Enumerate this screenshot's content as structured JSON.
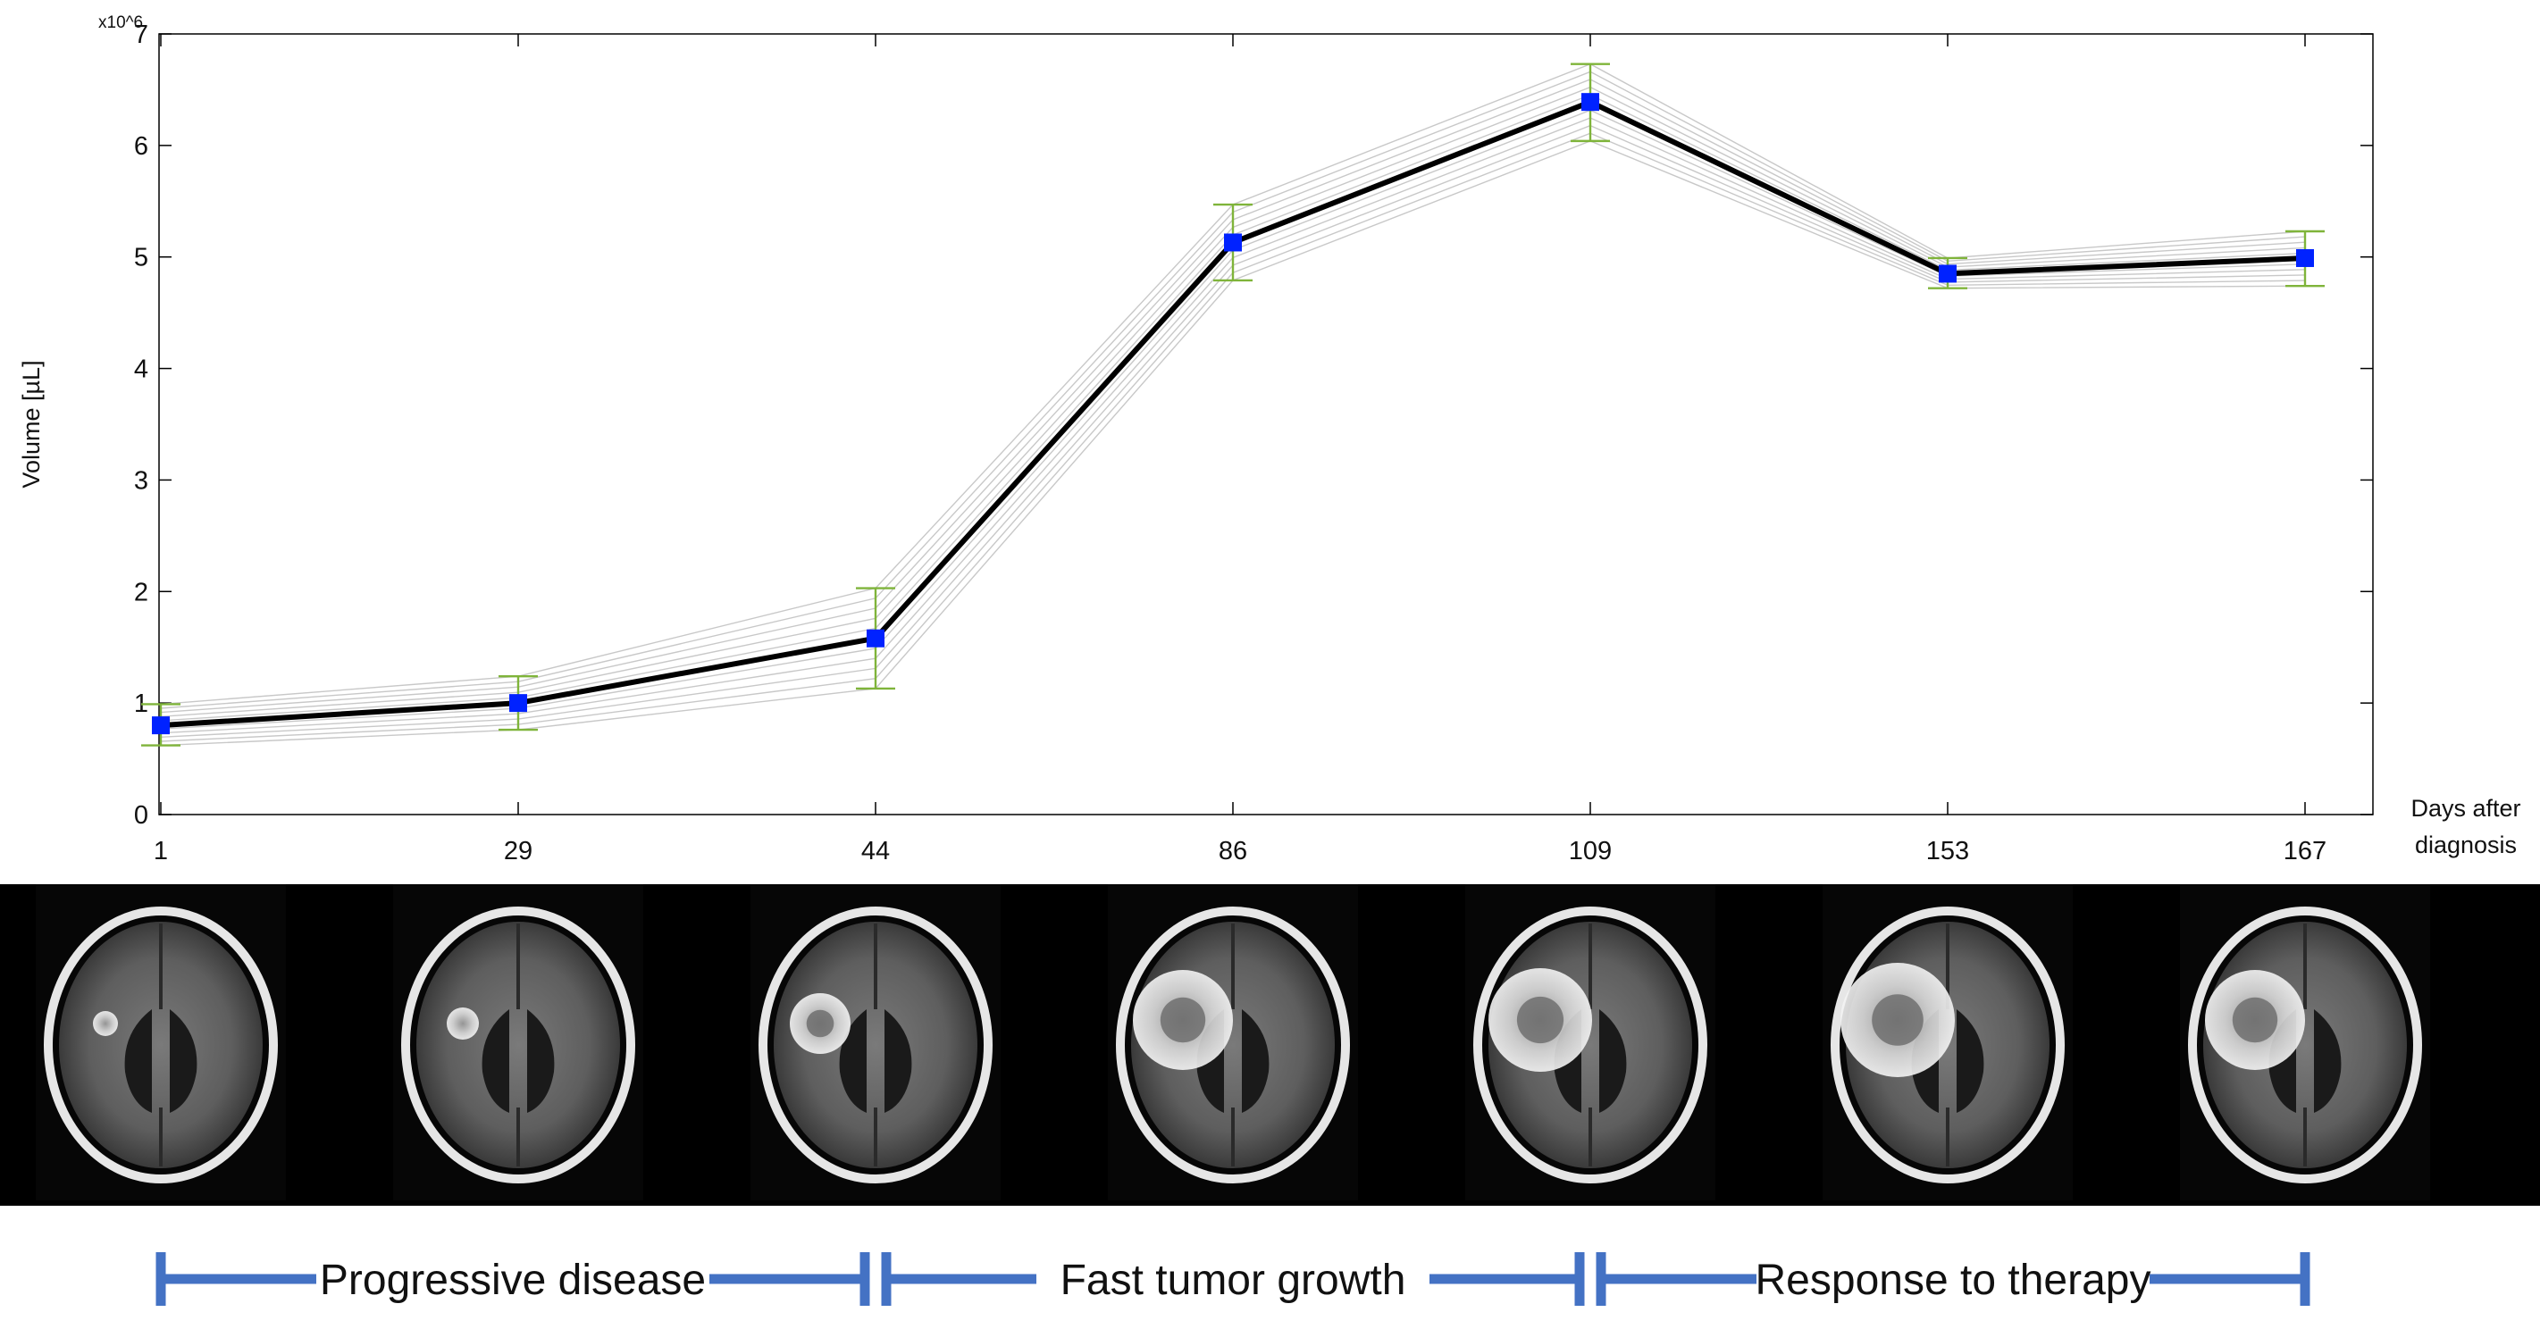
{
  "chart_data": {
    "type": "line",
    "x_categories": [
      "1",
      "29",
      "44",
      "86",
      "109",
      "153",
      "167"
    ],
    "series": [
      {
        "values": [
          0.8,
          1.0,
          1.58,
          5.13,
          6.39,
          4.85,
          4.99
        ],
        "error_low": [
          0.62,
          0.76,
          1.13,
          4.79,
          6.04,
          4.72,
          4.74
        ],
        "error_high": [
          0.99,
          1.24,
          2.03,
          5.47,
          6.73,
          4.99,
          5.23
        ],
        "color": "#000000",
        "marker_color": "#0022ff",
        "errorbar_color": "#7fb43a"
      }
    ],
    "ensemble_line_color": "#c8c8c8",
    "ylim": [
      0,
      7
    ],
    "yticks": [
      "0",
      "1",
      "2",
      "3",
      "4",
      "5",
      "6",
      "7"
    ],
    "ylabel": "Volume [µL]",
    "multiplier_label": "x10^6",
    "xlabel_line1": "Days after",
    "xlabel_line2": "diagnosis",
    "grid": false
  },
  "mri_panels": {
    "count": 7,
    "background": "#000000"
  },
  "phases": [
    {
      "label": "Progressive disease",
      "from_index": 0,
      "to_index": 2
    },
    {
      "label": "Fast tumor growth",
      "from_index": 2,
      "to_index": 4
    },
    {
      "label": "Response to therapy",
      "from_index": 4,
      "to_index": 6
    }
  ],
  "phase_color": "#4472c4"
}
